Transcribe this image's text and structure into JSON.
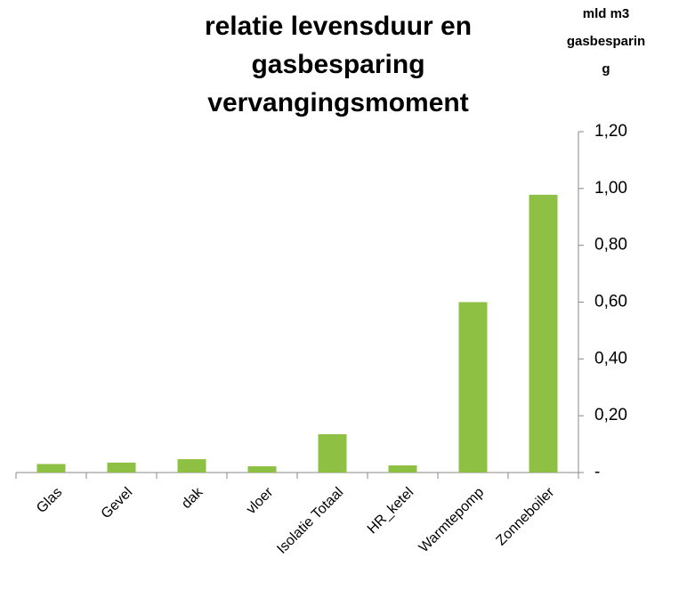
{
  "chart_data": {
    "type": "bar",
    "title": [
      "relatie levensduur en",
      "gasbesparing",
      "vervangingsmoment"
    ],
    "y_label": [
      "mld m3",
      "gasbesparin",
      "g"
    ],
    "categories": [
      "Glas",
      "Gevel",
      "dak",
      "vloer",
      "Isolatie Totaal",
      "HR_ketel",
      "Warmtepomp",
      "Zonneboiler"
    ],
    "values": [
      0.03,
      0.035,
      0.047,
      0.022,
      0.135,
      0.025,
      0.6,
      0.978
    ],
    "color": "#8dc043",
    "ylim": [
      0,
      1.2
    ],
    "yticks": [
      {
        "value": 0,
        "label": "-"
      },
      {
        "value": 0.2,
        "label": "0,20"
      },
      {
        "value": 0.4,
        "label": "0,40"
      },
      {
        "value": 0.6,
        "label": "0,60"
      },
      {
        "value": 0.8,
        "label": "0,80"
      },
      {
        "value": 1.0,
        "label": "1,00"
      },
      {
        "value": 1.2,
        "label": "1,20"
      }
    ],
    "y_axis_side": "right",
    "grid": false
  }
}
